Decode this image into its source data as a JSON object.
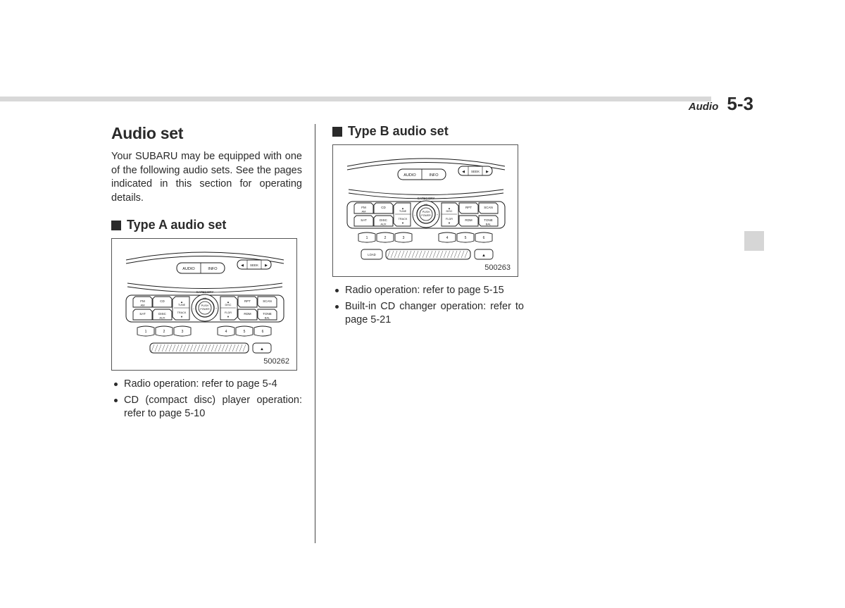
{
  "header": {
    "section": "Audio",
    "page_num": "5-3"
  },
  "col1": {
    "title": "Audio set",
    "intro": "Your SUBARU may be equipped with one of the following audio sets. See the pages indicated in this section for operating details.",
    "subhead": "Type A audio set",
    "fig_id": "500262",
    "bullets": [
      "Radio operation: refer to page 5-4",
      "CD (compact disc) player operation: refer to page 5-10"
    ]
  },
  "col2": {
    "subhead": "Type B audio set",
    "fig_id": "500263",
    "bullets": [
      "Radio operation: refer to page 5-15",
      "Built-in CD changer operation: refer to page 5-21"
    ]
  },
  "panel": {
    "category_label": "CATEGORY",
    "top_buttons": [
      "AUDIO",
      "INFO"
    ],
    "seek_btn": {
      "l": "◀",
      "m": "SEEK",
      "r": "▶"
    },
    "left_keys": [
      {
        "t": "FM",
        "b": "AM"
      },
      {
        "t": "CD",
        "b": ""
      },
      {
        "t": "SAT",
        "b": ""
      },
      {
        "t": "DISC",
        "b": "AUX"
      }
    ],
    "ring_t": "PUSH",
    "ring_b": "POWER",
    "side_l_t": "TUNE",
    "side_l_b": "TRACK",
    "side_r_t": "DISC",
    "side_r_b": "FLDR",
    "right_keys": [
      {
        "t": "RPT",
        "b": ""
      },
      {
        "t": "SCAN",
        "b": ""
      },
      {
        "t": "RDM",
        "b": ""
      },
      {
        "t": "TONE",
        "b": "BAL"
      }
    ],
    "presets": [
      "1",
      "2",
      "3",
      "4",
      "5",
      "6"
    ],
    "load_btn": "LOAD",
    "eject": "▲"
  }
}
